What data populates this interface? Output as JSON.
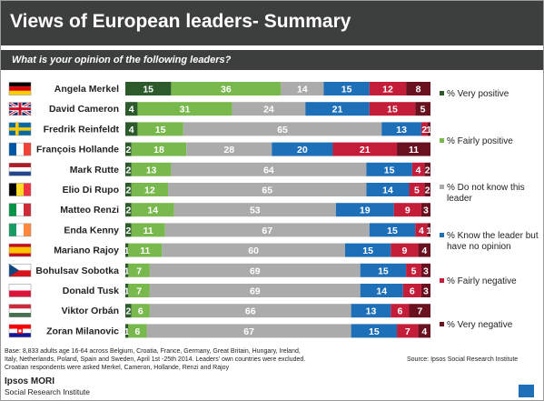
{
  "title": "Views of European leaders- Summary",
  "subtitle": "What is your opinion of the following leaders?",
  "footnote": {
    "base_line1": "Base: 8,833 adults age  16-64 across  Belgium, Croatia, France, Germany, Great Britain, Hungary, Ireland,",
    "base_line2": "Italy, Netherlands, Poland, Spain and Sweden, April 1st -25th 2014. Leaders' own countries were excluded.",
    "base_line3": "Croatian respondents were asked Merkel, Cameron, Hollande, Renzi and Rajoy",
    "source": "Source: Ipsos Social Research Institute"
  },
  "brand": {
    "name": "Ipsos MORI",
    "unit": "Social Research Institute",
    "badge": "Ipsos"
  },
  "chart_data": {
    "type": "bar",
    "orientation": "horizontal",
    "stacked": true,
    "categories": [
      "Angela Merkel",
      "David Cameron",
      "Fredrik Reinfeldt",
      "François Hollande",
      "Mark Rutte",
      "Elio Di Rupo",
      "Matteo Renzi",
      "Enda Kenny",
      "Mariano Rajoy",
      "Bohulsav Sobotka",
      "Donald Tusk",
      "Viktor Orbán",
      "Zoran Milanovic"
    ],
    "flags": [
      "germany",
      "united-kingdom",
      "sweden",
      "france",
      "netherlands",
      "belgium",
      "italy",
      "ireland",
      "spain",
      "czech-republic",
      "poland",
      "hungary",
      "croatia"
    ],
    "series": [
      {
        "name": "% Very positive",
        "color": "#2d5a2b",
        "values": [
          15,
          4,
          4,
          2,
          2,
          2,
          2,
          2,
          1,
          1,
          1,
          2,
          1
        ]
      },
      {
        "name": "% Fairly positive",
        "color": "#79b84c",
        "values": [
          36,
          31,
          15,
          18,
          13,
          12,
          14,
          11,
          11,
          7,
          7,
          6,
          6
        ]
      },
      {
        "name": "% Do not know this leader",
        "color": "#ababab",
        "values": [
          14,
          24,
          65,
          28,
          64,
          65,
          53,
          67,
          60,
          69,
          69,
          66,
          67
        ]
      },
      {
        "name": "% Know the leader but have no opinion",
        "color": "#1d6fb8",
        "values": [
          15,
          21,
          13,
          20,
          15,
          14,
          19,
          15,
          15,
          15,
          14,
          13,
          15
        ]
      },
      {
        "name": "% Fairly negative",
        "color": "#c41d3a",
        "values": [
          12,
          15,
          2,
          21,
          4,
          5,
          9,
          4,
          9,
          5,
          6,
          6,
          7
        ]
      },
      {
        "name": "% Very negative",
        "color": "#6a1120",
        "values": [
          8,
          5,
          1,
          11,
          2,
          2,
          3,
          1,
          4,
          3,
          3,
          7,
          4
        ]
      }
    ],
    "legend_text": [
      [
        "% Very positive"
      ],
      [
        "% Fairly positive"
      ],
      [
        "% Do not know this",
        "leader"
      ],
      [
        "% Know the leader but",
        "have no opinion"
      ],
      [
        "% Fairly negative"
      ],
      [
        "% Very negative"
      ]
    ],
    "legend_placement": "right",
    "grid": false
  }
}
